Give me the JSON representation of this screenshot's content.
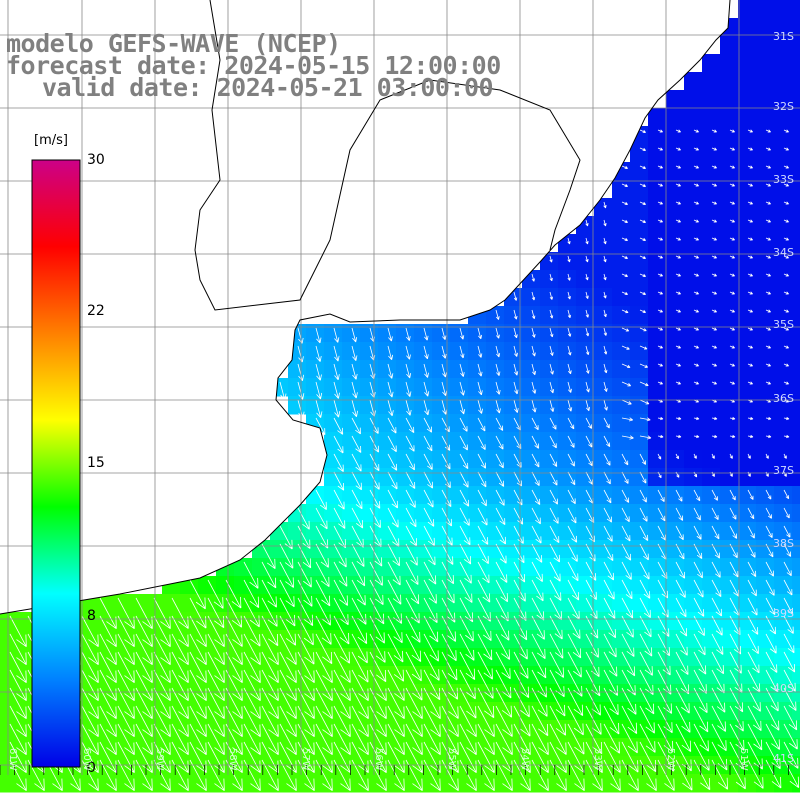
{
  "titles": {
    "line1": "modelo GEFS-WAVE (NCEP)",
    "line2": "forecast date: 2024-05-15 12:00:00",
    "line3": "valid date: 2024-05-21 03:00:00"
  },
  "colorbar": {
    "unit": "[m/s]",
    "ticks": [
      "30",
      "22",
      "15",
      "8",
      "0"
    ],
    "stops": [
      "#0000e6",
      "#0080ff",
      "#00ffff",
      "#00ff00",
      "#ffff00",
      "#ff8000",
      "#ff0000",
      "#cc0088"
    ]
  },
  "lat_labels": [
    "31S",
    "32S",
    "33S",
    "34S",
    "35S",
    "36S",
    "37S",
    "38S",
    "39S",
    "40S",
    "41S"
  ],
  "lon_labels": [
    "61W",
    "60W",
    "59W",
    "58W",
    "57W",
    "56W",
    "55W",
    "54W",
    "53W",
    "52W",
    "51W"
  ],
  "colors": {
    "land": "#ffffff",
    "coast": "#000000",
    "grid": "#888888",
    "arrow": "#ffffff"
  }
}
